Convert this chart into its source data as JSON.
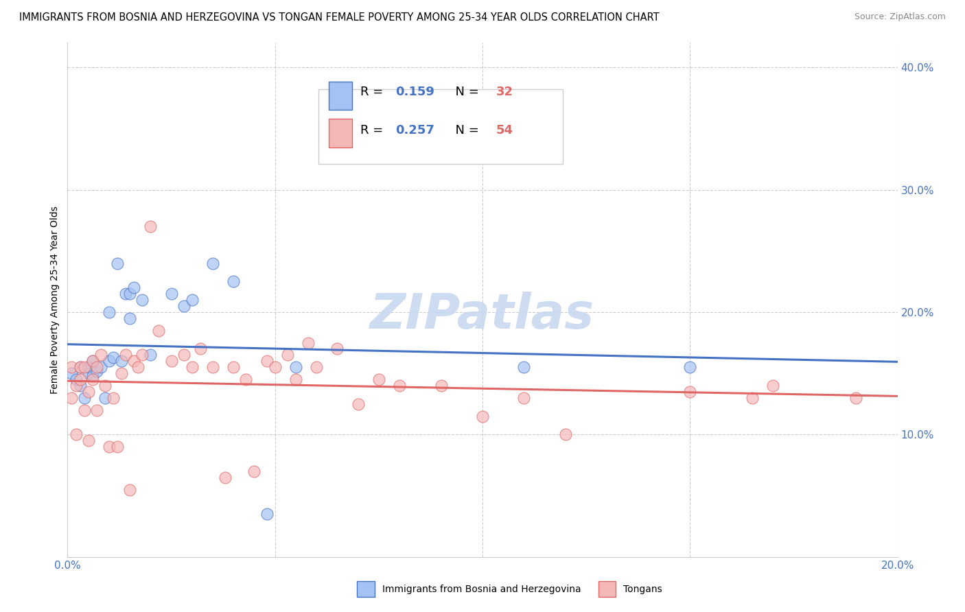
{
  "title": "IMMIGRANTS FROM BOSNIA AND HERZEGOVINA VS TONGAN FEMALE POVERTY AMONG 25-34 YEAR OLDS CORRELATION CHART",
  "source": "Source: ZipAtlas.com",
  "ylabel": "Female Poverty Among 25-34 Year Olds",
  "xlim": [
    0.0,
    0.2
  ],
  "ylim": [
    0.0,
    0.42
  ],
  "color_blue": "#a4c2f4",
  "color_pink": "#f4b8b8",
  "line_blue": "#4472c4",
  "line_pink": "#e06666",
  "tick_color_right": "#4472c4",
  "watermark": "ZIPatlas",
  "grid_color": "#cccccc",
  "background_color": "#ffffff",
  "title_fontsize": 10.5,
  "source_fontsize": 9,
  "axis_label_fontsize": 10,
  "tick_fontsize": 11,
  "watermark_fontsize": 52,
  "watermark_alpha": 0.18,
  "bosnia_x": [
    0.001,
    0.002,
    0.003,
    0.003,
    0.004,
    0.005,
    0.005,
    0.006,
    0.006,
    0.007,
    0.008,
    0.009,
    0.01,
    0.01,
    0.011,
    0.012,
    0.013,
    0.014,
    0.015,
    0.015,
    0.016,
    0.018,
    0.02,
    0.025,
    0.028,
    0.03,
    0.035,
    0.04,
    0.048,
    0.055,
    0.11,
    0.15
  ],
  "bosnia_y": [
    0.15,
    0.145,
    0.14,
    0.155,
    0.13,
    0.15,
    0.155,
    0.148,
    0.16,
    0.152,
    0.155,
    0.13,
    0.2,
    0.16,
    0.163,
    0.24,
    0.16,
    0.215,
    0.195,
    0.215,
    0.22,
    0.21,
    0.165,
    0.215,
    0.205,
    0.21,
    0.24,
    0.225,
    0.035,
    0.155,
    0.155,
    0.155
  ],
  "tongan_x": [
    0.001,
    0.001,
    0.002,
    0.002,
    0.003,
    0.003,
    0.004,
    0.004,
    0.005,
    0.005,
    0.006,
    0.006,
    0.007,
    0.007,
    0.008,
    0.009,
    0.01,
    0.011,
    0.012,
    0.013,
    0.014,
    0.015,
    0.016,
    0.017,
    0.018,
    0.02,
    0.022,
    0.025,
    0.028,
    0.03,
    0.032,
    0.035,
    0.038,
    0.04,
    0.043,
    0.045,
    0.048,
    0.05,
    0.053,
    0.055,
    0.058,
    0.06,
    0.065,
    0.07,
    0.075,
    0.08,
    0.09,
    0.1,
    0.11,
    0.12,
    0.15,
    0.165,
    0.17,
    0.19
  ],
  "tongan_y": [
    0.13,
    0.155,
    0.14,
    0.1,
    0.145,
    0.155,
    0.12,
    0.155,
    0.135,
    0.095,
    0.145,
    0.16,
    0.12,
    0.155,
    0.165,
    0.14,
    0.09,
    0.13,
    0.09,
    0.15,
    0.165,
    0.055,
    0.16,
    0.155,
    0.165,
    0.27,
    0.185,
    0.16,
    0.165,
    0.155,
    0.17,
    0.155,
    0.065,
    0.155,
    0.145,
    0.07,
    0.16,
    0.155,
    0.165,
    0.145,
    0.175,
    0.155,
    0.17,
    0.125,
    0.145,
    0.14,
    0.14,
    0.115,
    0.13,
    0.1,
    0.135,
    0.13,
    0.14,
    0.13
  ]
}
